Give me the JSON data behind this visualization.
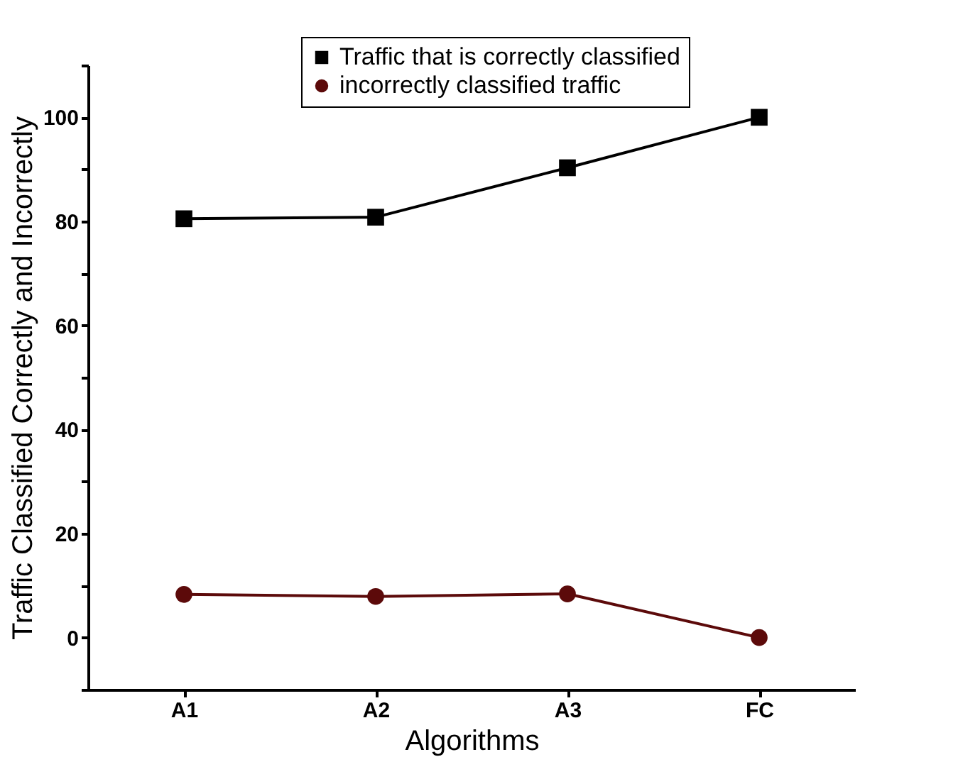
{
  "chart_data": {
    "type": "line",
    "xlabel": "Algorithms",
    "ylabel": "Traffic Classified Correctly and Incorrectly",
    "categories": [
      "A1",
      "A2",
      "A3",
      "FC"
    ],
    "series": [
      {
        "name": "Traffic that is correctly classified",
        "color": "#000000",
        "marker": "square",
        "values": [
          80.5,
          80.8,
          90.3,
          100
        ]
      },
      {
        "name": "incorrectly classified traffic",
        "color": "#5c0a0a",
        "marker": "circle",
        "values": [
          8.3,
          7.9,
          8.4,
          0
        ]
      }
    ],
    "ylim": [
      -10,
      110
    ],
    "yticks": [
      {
        "value": -10,
        "label": null
      },
      0,
      {
        "value": 10,
        "label": null
      },
      20,
      {
        "value": 30,
        "label": null
      },
      40,
      {
        "value": 50,
        "label": null
      },
      60,
      {
        "value": 70,
        "label": null
      },
      80,
      {
        "value": 90,
        "label": null
      },
      100,
      {
        "value": 110,
        "label": null
      }
    ],
    "grid": false,
    "legend": "top",
    "line_style": "solid"
  }
}
